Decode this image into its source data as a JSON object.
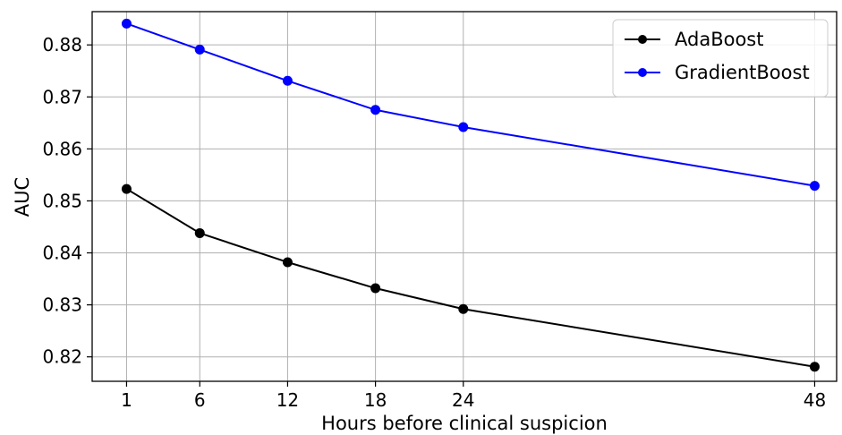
{
  "chart_data": {
    "type": "line",
    "title": "",
    "xlabel": "Hours before clinical suspicion",
    "ylabel": "AUC",
    "x": [
      1,
      6,
      12,
      18,
      24,
      48
    ],
    "x_ticks": [
      "1",
      "6",
      "12",
      "18",
      "24",
      "48"
    ],
    "y_ticks": [
      "0.82",
      "0.83",
      "0.84",
      "0.85",
      "0.86",
      "0.87",
      "0.88"
    ],
    "xlim": [
      -1.35,
      49.5
    ],
    "ylim": [
      0.8153,
      0.8864
    ],
    "grid": true,
    "legend_position": "top-right",
    "series": [
      {
        "name": "AdaBoost",
        "color": "#000000",
        "marker": "circle",
        "values": [
          0.8523,
          0.8438,
          0.8382,
          0.8332,
          0.8292,
          0.8181
        ]
      },
      {
        "name": "GradientBoost",
        "color": "#0000ff",
        "marker": "circle",
        "values": [
          0.8841,
          0.8791,
          0.8731,
          0.8675,
          0.8642,
          0.8529
        ]
      }
    ]
  }
}
